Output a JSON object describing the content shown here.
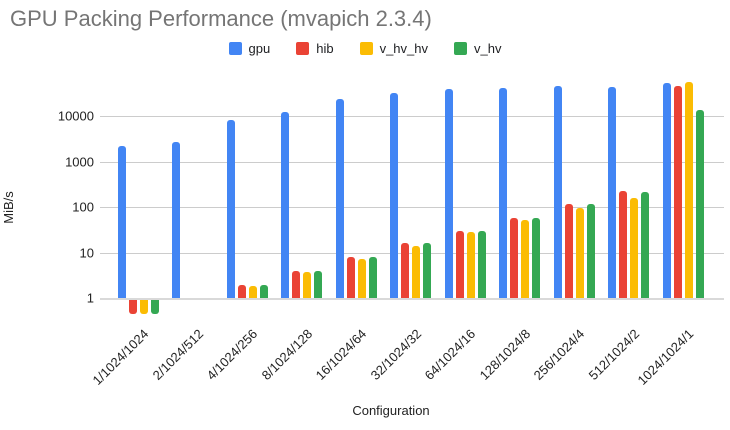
{
  "title": "GPU Packing Performance (mvapich 2.3.4)",
  "legend": {
    "items": [
      {
        "label": "gpu",
        "color": "#4285F4"
      },
      {
        "label": "hib",
        "color": "#EA4335"
      },
      {
        "label": "v_hv_hv",
        "color": "#FBBC04"
      },
      {
        "label": "v_hv",
        "color": "#34A853"
      }
    ]
  },
  "y_axis": {
    "title": "MiB/s",
    "tick_labels": [
      "1",
      "10",
      "100",
      "1000",
      "10000"
    ]
  },
  "x_axis": {
    "title": "Configuration"
  },
  "chart_data": {
    "type": "bar",
    "title": "GPU Packing Performance (mvapich 2.3.4)",
    "xlabel": "Configuration",
    "ylabel": "MiB/s",
    "y_scale": "log10",
    "ylim": [
      0.4,
      60000
    ],
    "y_ticks": [
      1,
      10,
      100,
      1000,
      10000
    ],
    "grid": true,
    "legend_position": "top",
    "categories": [
      "1/1024/1024",
      "2/1024/512",
      "4/1024/256",
      "8/1024/128",
      "16/1024/64",
      "32/1024/32",
      "64/1024/16",
      "128/1024/8",
      "256/1024/4",
      "512/1024/2",
      "1024/1024/1"
    ],
    "series": [
      {
        "name": "gpu",
        "color": "#4285F4",
        "values": [
          2200,
          2700,
          8200,
          12500,
          24000,
          33000,
          40000,
          43000,
          47000,
          45000,
          55000
        ]
      },
      {
        "name": "hib",
        "color": "#EA4335",
        "values": [
          0.5,
          null,
          1.9,
          4,
          7.8,
          16,
          30,
          58,
          115,
          225,
          46000
        ]
      },
      {
        "name": "v_hv_hv",
        "color": "#FBBC04",
        "values": [
          0.5,
          null,
          1.8,
          3.8,
          7.4,
          14,
          29,
          51,
          95,
          160,
          57000
        ]
      },
      {
        "name": "v_hv",
        "color": "#34A853",
        "values": [
          0.5,
          null,
          1.95,
          4,
          7.8,
          16.5,
          30,
          58,
          120,
          215,
          13500
        ]
      }
    ]
  }
}
